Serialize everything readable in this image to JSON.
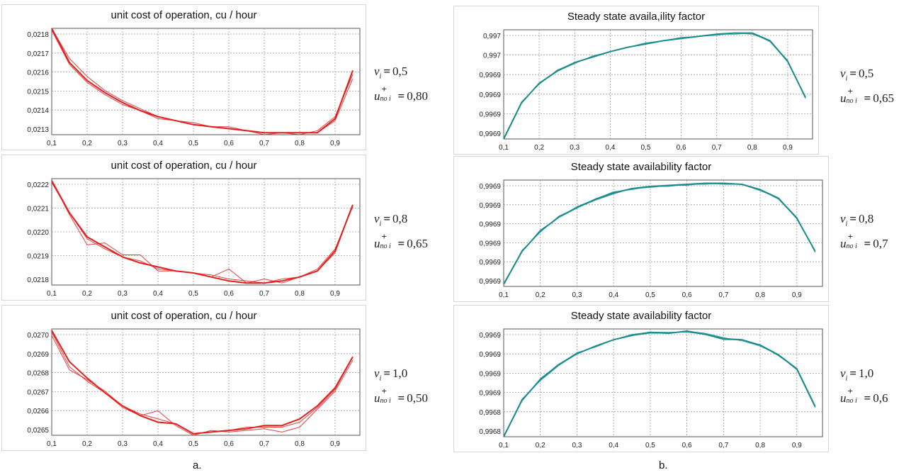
{
  "captions": {
    "a": "a.",
    "b": "b."
  },
  "colors": {
    "red": "#e0201e",
    "teal": "#1b8c8c",
    "grid": "#9a9a9a"
  },
  "chart_data": [
    {
      "type": "line",
      "title": "unit cost of operation, cu / hour",
      "xticks": [
        "0,1",
        "0,2",
        "0,3",
        "0,4",
        "0,5",
        "0,6",
        "0,7",
        "0,8",
        "0,9"
      ],
      "yticks": [
        "0,0218",
        "0,0217",
        "0,0216",
        "0,0215",
        "0,0214",
        "0,0213"
      ],
      "xlim": [
        0.1,
        0.97
      ],
      "ylim": [
        0.0213,
        0.02183
      ],
      "grid": true,
      "x": [
        0.1,
        0.15,
        0.2,
        0.25,
        0.3,
        0.35,
        0.4,
        0.45,
        0.5,
        0.55,
        0.6,
        0.65,
        0.7,
        0.75,
        0.8,
        0.85,
        0.9,
        0.95
      ],
      "series": [
        {
          "values": [
            0.02183,
            0.02166,
            0.02157,
            0.02151,
            0.02146,
            0.02142,
            0.02139,
            0.02137,
            0.02135,
            0.02134,
            0.02133,
            0.02132,
            0.02131,
            0.02131,
            0.02131,
            0.02131,
            0.02138,
            0.02162
          ]
        },
        {
          "values": [
            0.02183,
            0.02168,
            0.02159,
            0.02152,
            0.02147,
            0.02143,
            0.02139,
            0.02137,
            0.02135,
            0.02134,
            0.02133,
            0.02132,
            0.02131,
            0.02131,
            0.0213,
            0.02132,
            0.02139,
            0.0216
          ]
        },
        {
          "values": [
            0.02182,
            0.02165,
            0.02156,
            0.0215,
            0.02145,
            0.02142,
            0.02138,
            0.02137,
            0.02136,
            0.02134,
            0.02134,
            0.02132,
            0.0213,
            0.02131,
            0.02131,
            0.02131,
            0.02137,
            0.02158
          ]
        }
      ],
      "param": {
        "sym": "v",
        "sub": "i",
        "eq": "=",
        "val": "0,5",
        "sym2": "u",
        "sup2": "+",
        "sub2": "no i",
        "val2": "0,80"
      }
    },
    {
      "type": "line",
      "title": "unit cost of operation, cu / hour",
      "xticks": [
        "0,1",
        "0,2",
        "0,3",
        "0,4",
        "0,5",
        "0,6",
        "0,7",
        "0,8",
        "0,9"
      ],
      "yticks": [
        "0,0222",
        "0,0221",
        "0,0220",
        "0,0219",
        "0,0218"
      ],
      "xlim": [
        0.1,
        0.97
      ],
      "ylim": [
        0.02177,
        0.0223
      ],
      "grid": true,
      "x": [
        0.1,
        0.15,
        0.2,
        0.25,
        0.3,
        0.35,
        0.4,
        0.45,
        0.5,
        0.55,
        0.6,
        0.65,
        0.7,
        0.75,
        0.8,
        0.85,
        0.9,
        0.95
      ],
      "series": [
        {
          "values": [
            0.02229,
            0.02213,
            0.02201,
            0.02196,
            0.02191,
            0.02188,
            0.02186,
            0.02184,
            0.02183,
            0.02181,
            0.02179,
            0.02178,
            0.02178,
            0.02179,
            0.02181,
            0.02184,
            0.02194,
            0.02217
          ]
        },
        {
          "values": [
            0.02229,
            0.02212,
            0.02197,
            0.02198,
            0.02192,
            0.02192,
            0.02184,
            0.02184,
            0.02183,
            0.02181,
            0.02185,
            0.02178,
            0.0218,
            0.02178,
            0.02181,
            0.02185,
            0.02195,
            0.02216
          ]
        },
        {
          "values": [
            0.02228,
            0.02213,
            0.022,
            0.02195,
            0.02191,
            0.02189,
            0.02185,
            0.02184,
            0.02183,
            0.02182,
            0.0218,
            0.02179,
            0.02178,
            0.0218,
            0.02181,
            0.02184,
            0.02193,
            0.02217
          ]
        }
      ],
      "param": {
        "sym": "v",
        "sub": "i",
        "eq": "=",
        "val": "0,8",
        "sym2": "u",
        "sup2": "+",
        "sub2": "no i",
        "val2": "0,65"
      }
    },
    {
      "type": "line",
      "title": "unit cost of operation, cu / hour",
      "xticks": [
        "0,1",
        "0,2",
        "0,3",
        "0,4",
        "0,5",
        "0,6",
        "0,7",
        "0,8",
        "0,9"
      ],
      "yticks": [
        "0,0270",
        "0,0269",
        "0,0268",
        "0,0267",
        "0,0266",
        "0,0265"
      ],
      "xlim": [
        0.1,
        0.97
      ],
      "ylim": [
        0.02644,
        0.02709
      ],
      "grid": true,
      "x": [
        0.1,
        0.15,
        0.2,
        0.25,
        0.3,
        0.35,
        0.4,
        0.45,
        0.5,
        0.55,
        0.6,
        0.65,
        0.7,
        0.75,
        0.8,
        0.85,
        0.9,
        0.95
      ],
      "series": [
        {
          "values": [
            0.02708,
            0.02689,
            0.02679,
            0.0267,
            0.02662,
            0.02656,
            0.02652,
            0.02651,
            0.02645,
            0.02646,
            0.02647,
            0.02648,
            0.0265,
            0.0265,
            0.02654,
            0.02662,
            0.02673,
            0.02692
          ]
        },
        {
          "values": [
            0.02707,
            0.02686,
            0.02677,
            0.0267,
            0.02661,
            0.02656,
            0.02659,
            0.0265,
            0.02644,
            0.02647,
            0.02646,
            0.02647,
            0.02648,
            0.02646,
            0.02649,
            0.0266,
            0.02671,
            0.0269
          ]
        },
        {
          "values": [
            0.02705,
            0.02684,
            0.02678,
            0.02671,
            0.02662,
            0.02657,
            0.02654,
            0.02651,
            0.02645,
            0.02646,
            0.02647,
            0.02649,
            0.02649,
            0.02649,
            0.02652,
            0.02661,
            0.02672,
            0.02692
          ]
        }
      ],
      "param": {
        "sym": "v",
        "sub": "i",
        "eq": "=",
        "val": "1,0",
        "sym2": "u",
        "sup2": "+",
        "sub2": "no i",
        "val2": "0,50"
      }
    },
    {
      "type": "line",
      "title": "Steady state availa,ility factor",
      "xticks": [
        "0,1",
        "0,2",
        "0,3",
        "0,4",
        "0,5",
        "0,6",
        "0,7",
        "0,8",
        "0,9"
      ],
      "yticks": [
        "0,997",
        "0,997",
        "0,9969",
        "0,9969",
        "0,9969",
        "0,9969"
      ],
      "xlim": [
        0.1,
        0.97
      ],
      "ylim": [
        0.0,
        1.0
      ],
      "grid": true,
      "x": [
        0.1,
        0.15,
        0.2,
        0.25,
        0.3,
        0.35,
        0.4,
        0.45,
        0.5,
        0.55,
        0.6,
        0.65,
        0.7,
        0.75,
        0.8,
        0.85,
        0.9,
        0.95
      ],
      "series": [
        {
          "values": [
            0.0,
            0.33,
            0.51,
            0.62,
            0.7,
            0.75,
            0.8,
            0.84,
            0.87,
            0.9,
            0.92,
            0.94,
            0.96,
            0.97,
            0.97,
            0.9,
            0.71,
            0.38
          ]
        },
        {
          "values": [
            0.0,
            0.34,
            0.5,
            0.63,
            0.7,
            0.75,
            0.8,
            0.84,
            0.88,
            0.9,
            0.92,
            0.94,
            0.95,
            0.97,
            0.96,
            0.9,
            0.72,
            0.37
          ]
        },
        {
          "values": [
            0.01,
            0.33,
            0.51,
            0.62,
            0.69,
            0.76,
            0.8,
            0.84,
            0.87,
            0.9,
            0.93,
            0.94,
            0.96,
            0.96,
            0.97,
            0.89,
            0.71,
            0.38
          ]
        }
      ],
      "param": {
        "sym": "v",
        "sub": "i",
        "eq": "=",
        "val": "0,5",
        "sym2": "u",
        "sup2": "+",
        "sub2": "no i",
        "val2": "0,65"
      }
    },
    {
      "type": "line",
      "title": "Steady state availability factor",
      "xticks": [
        "0,1",
        "0,2",
        "0,3",
        "0,4",
        "0,5",
        "0,6",
        "0,7",
        "0,8",
        "0,9"
      ],
      "yticks": [
        "0,9969",
        "0,9969",
        "0,9969",
        "0,9969",
        "0,9969",
        "0,9969"
      ],
      "xlim": [
        0.1,
        0.97
      ],
      "ylim": [
        0.0,
        1.0
      ],
      "grid": true,
      "x": [
        0.1,
        0.15,
        0.2,
        0.25,
        0.3,
        0.35,
        0.4,
        0.45,
        0.5,
        0.55,
        0.6,
        0.65,
        0.7,
        0.75,
        0.8,
        0.85,
        0.9,
        0.95
      ],
      "series": [
        {
          "values": [
            0.02,
            0.33,
            0.52,
            0.65,
            0.74,
            0.82,
            0.88,
            0.92,
            0.94,
            0.95,
            0.96,
            0.97,
            0.97,
            0.96,
            0.91,
            0.83,
            0.64,
            0.33
          ]
        },
        {
          "values": [
            0.02,
            0.34,
            0.51,
            0.66,
            0.74,
            0.81,
            0.87,
            0.92,
            0.93,
            0.95,
            0.95,
            0.97,
            0.96,
            0.96,
            0.9,
            0.83,
            0.65,
            0.32
          ]
        },
        {
          "values": [
            0.03,
            0.33,
            0.53,
            0.65,
            0.75,
            0.82,
            0.89,
            0.91,
            0.94,
            0.94,
            0.96,
            0.96,
            0.97,
            0.96,
            0.91,
            0.82,
            0.64,
            0.33
          ]
        }
      ],
      "param": {
        "sym": "v",
        "sub": "i",
        "eq": "=",
        "val": "0,8",
        "sym2": "u",
        "sup2": "+",
        "sub2": "no i",
        "val2": "0,7"
      }
    },
    {
      "type": "line",
      "title": "Steady state availability factor",
      "xticks": [
        "0,1",
        "0,2",
        "0,3",
        "0,4",
        "0,5",
        "0,6",
        "0,7",
        "0,8",
        "0,9"
      ],
      "yticks": [
        "0,9969",
        "0,9969",
        "0,9969",
        "0,9969",
        "0,9968",
        "0,9968"
      ],
      "xlim": [
        0.1,
        0.97
      ],
      "ylim": [
        0.0,
        1.0
      ],
      "grid": true,
      "x": [
        0.1,
        0.15,
        0.2,
        0.25,
        0.3,
        0.35,
        0.4,
        0.45,
        0.5,
        0.55,
        0.6,
        0.65,
        0.7,
        0.75,
        0.8,
        0.85,
        0.9,
        0.95
      ],
      "series": [
        {
          "values": [
            0.0,
            0.34,
            0.53,
            0.67,
            0.77,
            0.84,
            0.9,
            0.94,
            0.97,
            0.96,
            0.98,
            0.95,
            0.91,
            0.9,
            0.85,
            0.76,
            0.63,
            0.28
          ]
        },
        {
          "values": [
            0.0,
            0.35,
            0.52,
            0.66,
            0.77,
            0.84,
            0.9,
            0.94,
            0.96,
            0.96,
            0.98,
            0.96,
            0.92,
            0.89,
            0.84,
            0.76,
            0.62,
            0.27
          ]
        },
        {
          "values": [
            0.01,
            0.33,
            0.54,
            0.67,
            0.78,
            0.83,
            0.9,
            0.95,
            0.97,
            0.97,
            0.97,
            0.95,
            0.9,
            0.9,
            0.85,
            0.75,
            0.63,
            0.28
          ]
        }
      ],
      "param": {
        "sym": "v",
        "sub": "i",
        "eq": "=",
        "val": "1,0",
        "sym2": "u",
        "sup2": "+",
        "sub2": "no i",
        "val2": "0,6"
      }
    }
  ]
}
